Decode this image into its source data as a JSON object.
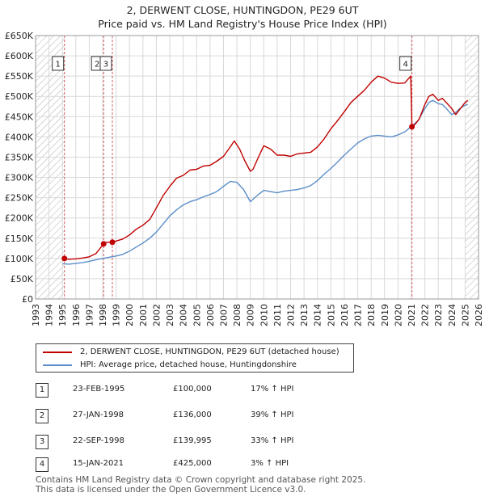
{
  "title": "2, DERWENT CLOSE, HUNTINGDON, PE29 6UT",
  "subtitle": "Price paid vs. HM Land Registry's House Price Index (HPI)",
  "legend": {
    "property": "2, DERWENT CLOSE, HUNTINGDON, PE29 6UT (detached house)",
    "hpi": "HPI: Average price, detached house, Huntingdonshire"
  },
  "colors": {
    "property": "#c00000",
    "hpi": "#5b8ec9",
    "grid": "#d9d9d9",
    "hatch": "#b0b0b0",
    "vline": "#d06060"
  },
  "transactions": [
    {
      "num": "1",
      "date": "23-FEB-1995",
      "price": "£100,000",
      "hpi": "17% ↑ HPI"
    },
    {
      "num": "2",
      "date": "27-JAN-1998",
      "price": "£136,000",
      "hpi": "39% ↑ HPI"
    },
    {
      "num": "3",
      "date": "22-SEP-1998",
      "price": "£139,995",
      "hpi": "33% ↑ HPI"
    },
    {
      "num": "4",
      "date": "15-JAN-2021",
      "price": "£425,000",
      "hpi": "3% ↑ HPI"
    }
  ],
  "footer": {
    "line1": "Contains HM Land Registry data © Crown copyright and database right 2025.",
    "line2": "This data is licensed under the Open Government Licence v3.0."
  },
  "chart_data": {
    "type": "line",
    "title": "2, DERWENT CLOSE, HUNTINGDON, PE29 6UT",
    "subtitle": "Price paid vs. HM Land Registry's House Price Index (HPI)",
    "xlim": [
      1993,
      2026
    ],
    "ylim": [
      0,
      650000
    ],
    "grid": true,
    "legend_position": "below-left",
    "x_ticks": [
      1993,
      1994,
      1995,
      1996,
      1997,
      1998,
      1999,
      2000,
      2001,
      2002,
      2003,
      2004,
      2005,
      2006,
      2007,
      2008,
      2009,
      2010,
      2011,
      2012,
      2013,
      2014,
      2015,
      2016,
      2017,
      2018,
      2019,
      2020,
      2021,
      2022,
      2023,
      2024,
      2025,
      2026
    ],
    "y_ticks": [
      0,
      50000,
      100000,
      150000,
      200000,
      250000,
      300000,
      350000,
      400000,
      450000,
      500000,
      550000,
      600000,
      650000
    ],
    "y_tick_labels": [
      "£0",
      "£50K",
      "£100K",
      "£150K",
      "£200K",
      "£250K",
      "£300K",
      "£350K",
      "£400K",
      "£450K",
      "£500K",
      "£550K",
      "£600K",
      "£650K"
    ],
    "hatch_ranges": [
      [
        1993,
        1995.15
      ],
      [
        2025.0,
        2026
      ]
    ],
    "series": [
      {
        "name": "2, DERWENT CLOSE, HUNTINGDON, PE29 6UT (detached house)",
        "x": [
          1995.15,
          1995.5,
          1996,
          1996.5,
          1997,
          1997.5,
          1998.07,
          1998.3,
          1998.72,
          1999,
          1999.5,
          2000,
          2000.5,
          2001,
          2001.5,
          2002,
          2002.5,
          2003,
          2003.5,
          2004,
          2004.5,
          2005,
          2005.5,
          2006,
          2006.5,
          2007,
          2007.5,
          2007.8,
          2008.2,
          2008.6,
          2009,
          2009.2,
          2009.6,
          2010,
          2010.5,
          2011,
          2011.5,
          2012,
          2012.5,
          2013,
          2013.5,
          2014,
          2014.5,
          2015,
          2015.5,
          2016,
          2016.5,
          2017,
          2017.5,
          2018,
          2018.5,
          2019,
          2019.5,
          2020,
          2020.5,
          2020.95,
          2021.04,
          2021.3,
          2021.6,
          2022,
          2022.3,
          2022.6,
          2023,
          2023.3,
          2023.6,
          2024,
          2024.3,
          2024.6,
          2025,
          2025.2
        ],
        "y": [
          100000,
          98000,
          99000,
          101000,
          104000,
          112000,
          136000,
          140000,
          139995,
          143000,
          148000,
          158000,
          172000,
          182000,
          196000,
          225000,
          255000,
          278000,
          298000,
          305000,
          318000,
          320000,
          328000,
          330000,
          340000,
          352000,
          375000,
          390000,
          370000,
          340000,
          315000,
          320000,
          350000,
          378000,
          370000,
          355000,
          355000,
          352000,
          358000,
          360000,
          362000,
          375000,
          395000,
          420000,
          440000,
          462000,
          485000,
          500000,
          515000,
          535000,
          550000,
          545000,
          535000,
          532000,
          533000,
          550000,
          425000,
          432000,
          445000,
          480000,
          500000,
          505000,
          490000,
          495000,
          485000,
          470000,
          455000,
          468000,
          485000,
          490000
        ]
      },
      {
        "name": "HPI: Average price, detached house, Huntingdonshire",
        "x": [
          1995,
          1995.5,
          1996,
          1996.5,
          1997,
          1997.5,
          1998,
          1998.5,
          1999,
          1999.5,
          2000,
          2000.5,
          2001,
          2001.5,
          2002,
          2002.5,
          2003,
          2003.5,
          2004,
          2004.5,
          2005,
          2005.5,
          2006,
          2006.5,
          2007,
          2007.5,
          2008,
          2008.5,
          2009,
          2009.5,
          2010,
          2010.5,
          2011,
          2011.5,
          2012,
          2012.5,
          2013,
          2013.5,
          2014,
          2014.5,
          2015,
          2015.5,
          2016,
          2016.5,
          2017,
          2017.5,
          2018,
          2018.5,
          2019,
          2019.5,
          2020,
          2020.5,
          2021,
          2021.5,
          2022,
          2022.3,
          2022.6,
          2023,
          2023.3,
          2023.6,
          2024,
          2024.3,
          2024.6,
          2025,
          2025.2
        ],
        "y": [
          87000,
          86000,
          88000,
          90000,
          93000,
          97000,
          100000,
          103000,
          106000,
          110000,
          118000,
          128000,
          138000,
          150000,
          165000,
          185000,
          205000,
          220000,
          232000,
          240000,
          245000,
          252000,
          258000,
          265000,
          278000,
          290000,
          288000,
          270000,
          240000,
          255000,
          268000,
          265000,
          262000,
          266000,
          268000,
          270000,
          274000,
          280000,
          292000,
          308000,
          322000,
          338000,
          355000,
          370000,
          385000,
          395000,
          402000,
          404000,
          402000,
          400000,
          405000,
          412000,
          426000,
          440000,
          470000,
          485000,
          490000,
          482000,
          480000,
          470000,
          455000,
          460000,
          470000,
          478000,
          480000
        ]
      }
    ],
    "markers": [
      {
        "label": "1",
        "x": 1995.15,
        "y": 100000
      },
      {
        "label": "2",
        "x": 1998.07,
        "y": 136000
      },
      {
        "label": "3",
        "x": 1998.72,
        "y": 139995
      },
      {
        "label": "4",
        "x": 2021.04,
        "y": 425000
      }
    ]
  }
}
